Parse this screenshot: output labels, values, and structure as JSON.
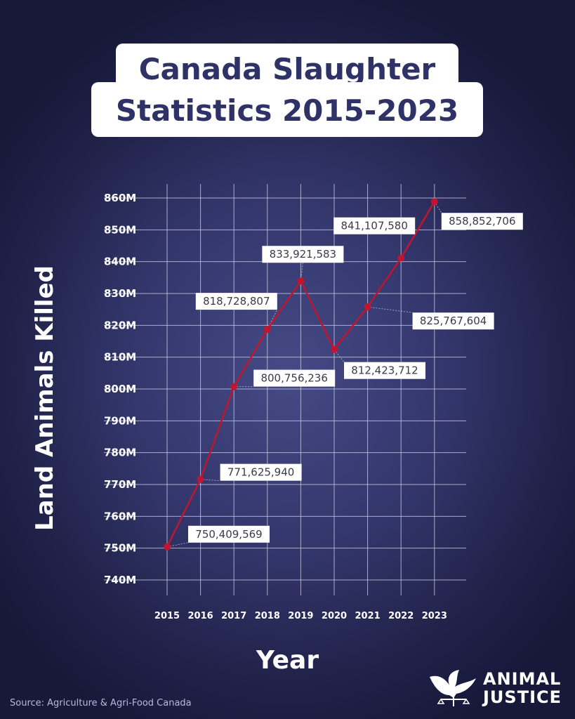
{
  "title": {
    "line1": "Canada Slaughter",
    "line2": "Statistics 2015-2023"
  },
  "source": "Source: Agriculture & Agri-Food Canada",
  "logo": {
    "icon": "dove-scales-icon",
    "line1": "ANIMAL",
    "line2": "JUSTICE"
  },
  "colors": {
    "line": "#c0152f",
    "grid": "#c8cae0",
    "title_text": "#2f3266"
  },
  "chart_data": {
    "type": "line",
    "title": "Canada Slaughter Statistics 2015-2023",
    "xlabel": "Year",
    "ylabel": "Land Animals Killed",
    "ylim": [
      740000000,
      860000000
    ],
    "grid": true,
    "y_ticks": [
      "740M",
      "750M",
      "760M",
      "770M",
      "780M",
      "790M",
      "800M",
      "810M",
      "820M",
      "830M",
      "840M",
      "850M",
      "860M"
    ],
    "categories": [
      "2015",
      "2016",
      "2017",
      "2018",
      "2019",
      "2020",
      "2021",
      "2022",
      "2023"
    ],
    "values": [
      750409569,
      771625940,
      800756236,
      818728807,
      833921583,
      812423712,
      825767604,
      841107580,
      858852706
    ],
    "data_labels": [
      "750,409,569",
      "771,625,940",
      "800,756,236",
      "818,728,807",
      "833,921,583",
      "812,423,712",
      "825,767,604",
      "841,107,580",
      "858,852,706"
    ]
  }
}
